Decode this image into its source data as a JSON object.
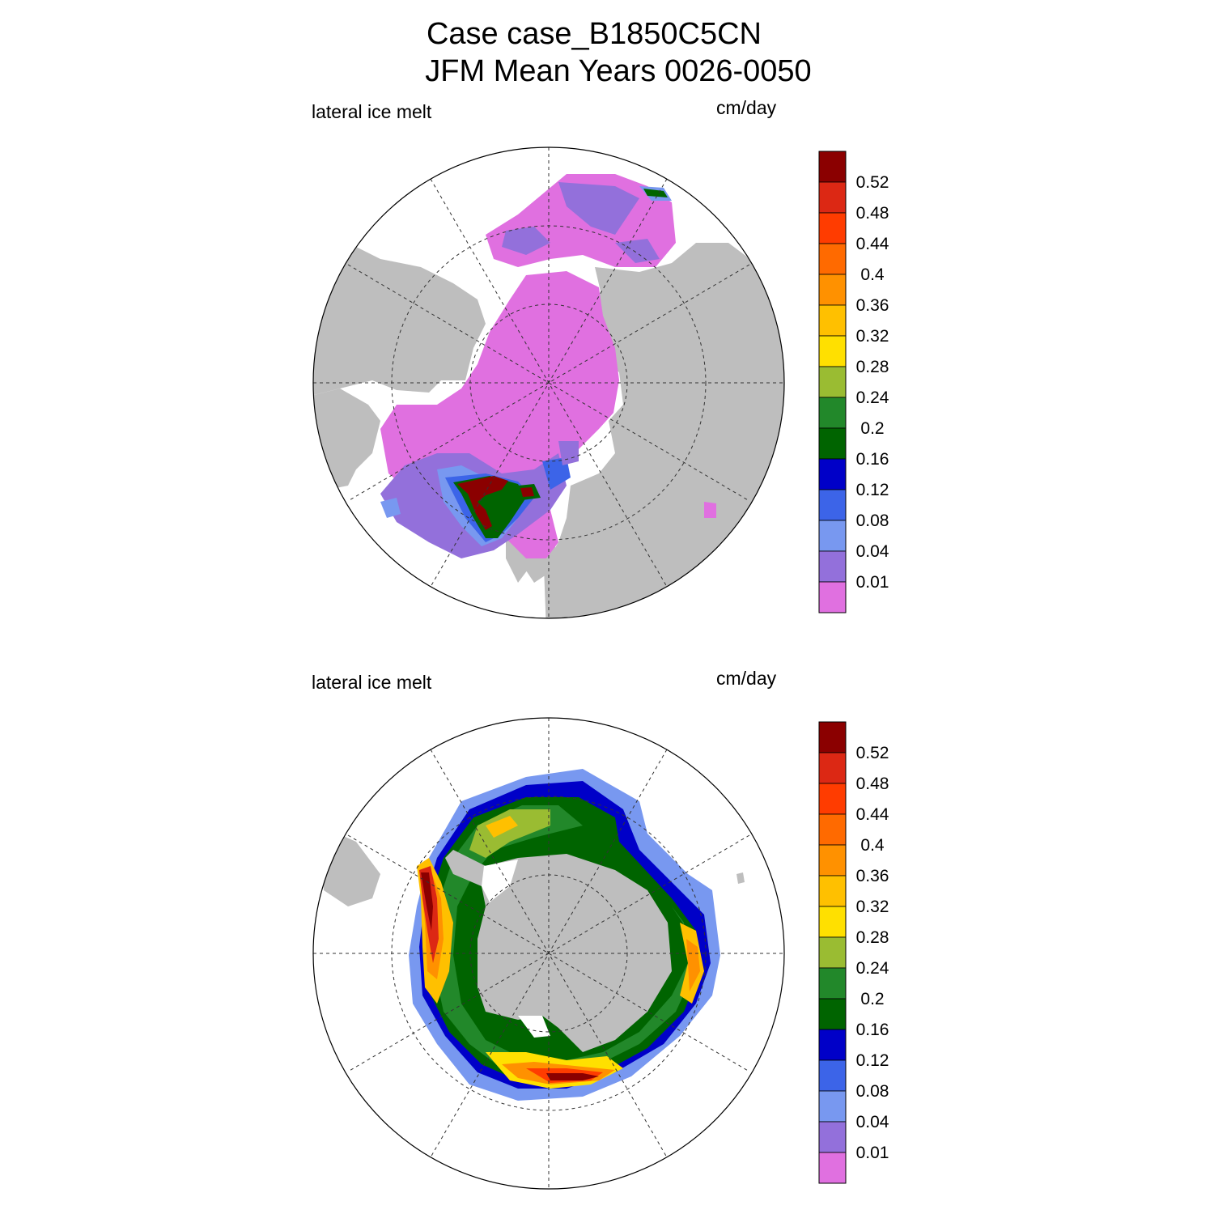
{
  "title": {
    "line1": "Case case_B1850C5CN",
    "line2": "JFM Mean    Years 0026-0050"
  },
  "panels": [
    {
      "name": "north",
      "variable": "lateral ice melt",
      "units": "cm/day"
    },
    {
      "name": "south",
      "variable": "lateral ice melt",
      "units": "cm/day"
    }
  ],
  "colorbar": {
    "levels": [
      "0.52",
      "0.48",
      "0.44",
      "0.4",
      "0.36",
      "0.32",
      "0.28",
      "0.24",
      "0.2",
      "0.16",
      "0.12",
      "0.08",
      "0.04",
      "0.01"
    ],
    "colors": [
      "#8b0000",
      "#dc2814",
      "#ff3c00",
      "#ff6a00",
      "#ff9100",
      "#ffc000",
      "#ffe000",
      "#9abc32",
      "#22882a",
      "#006400",
      "#0000c8",
      "#3c64e8",
      "#7898f0",
      "#9370db",
      "#e070e0"
    ]
  },
  "map_colors": {
    "land": "#bebebe",
    "ocean": "#ffffff"
  }
}
